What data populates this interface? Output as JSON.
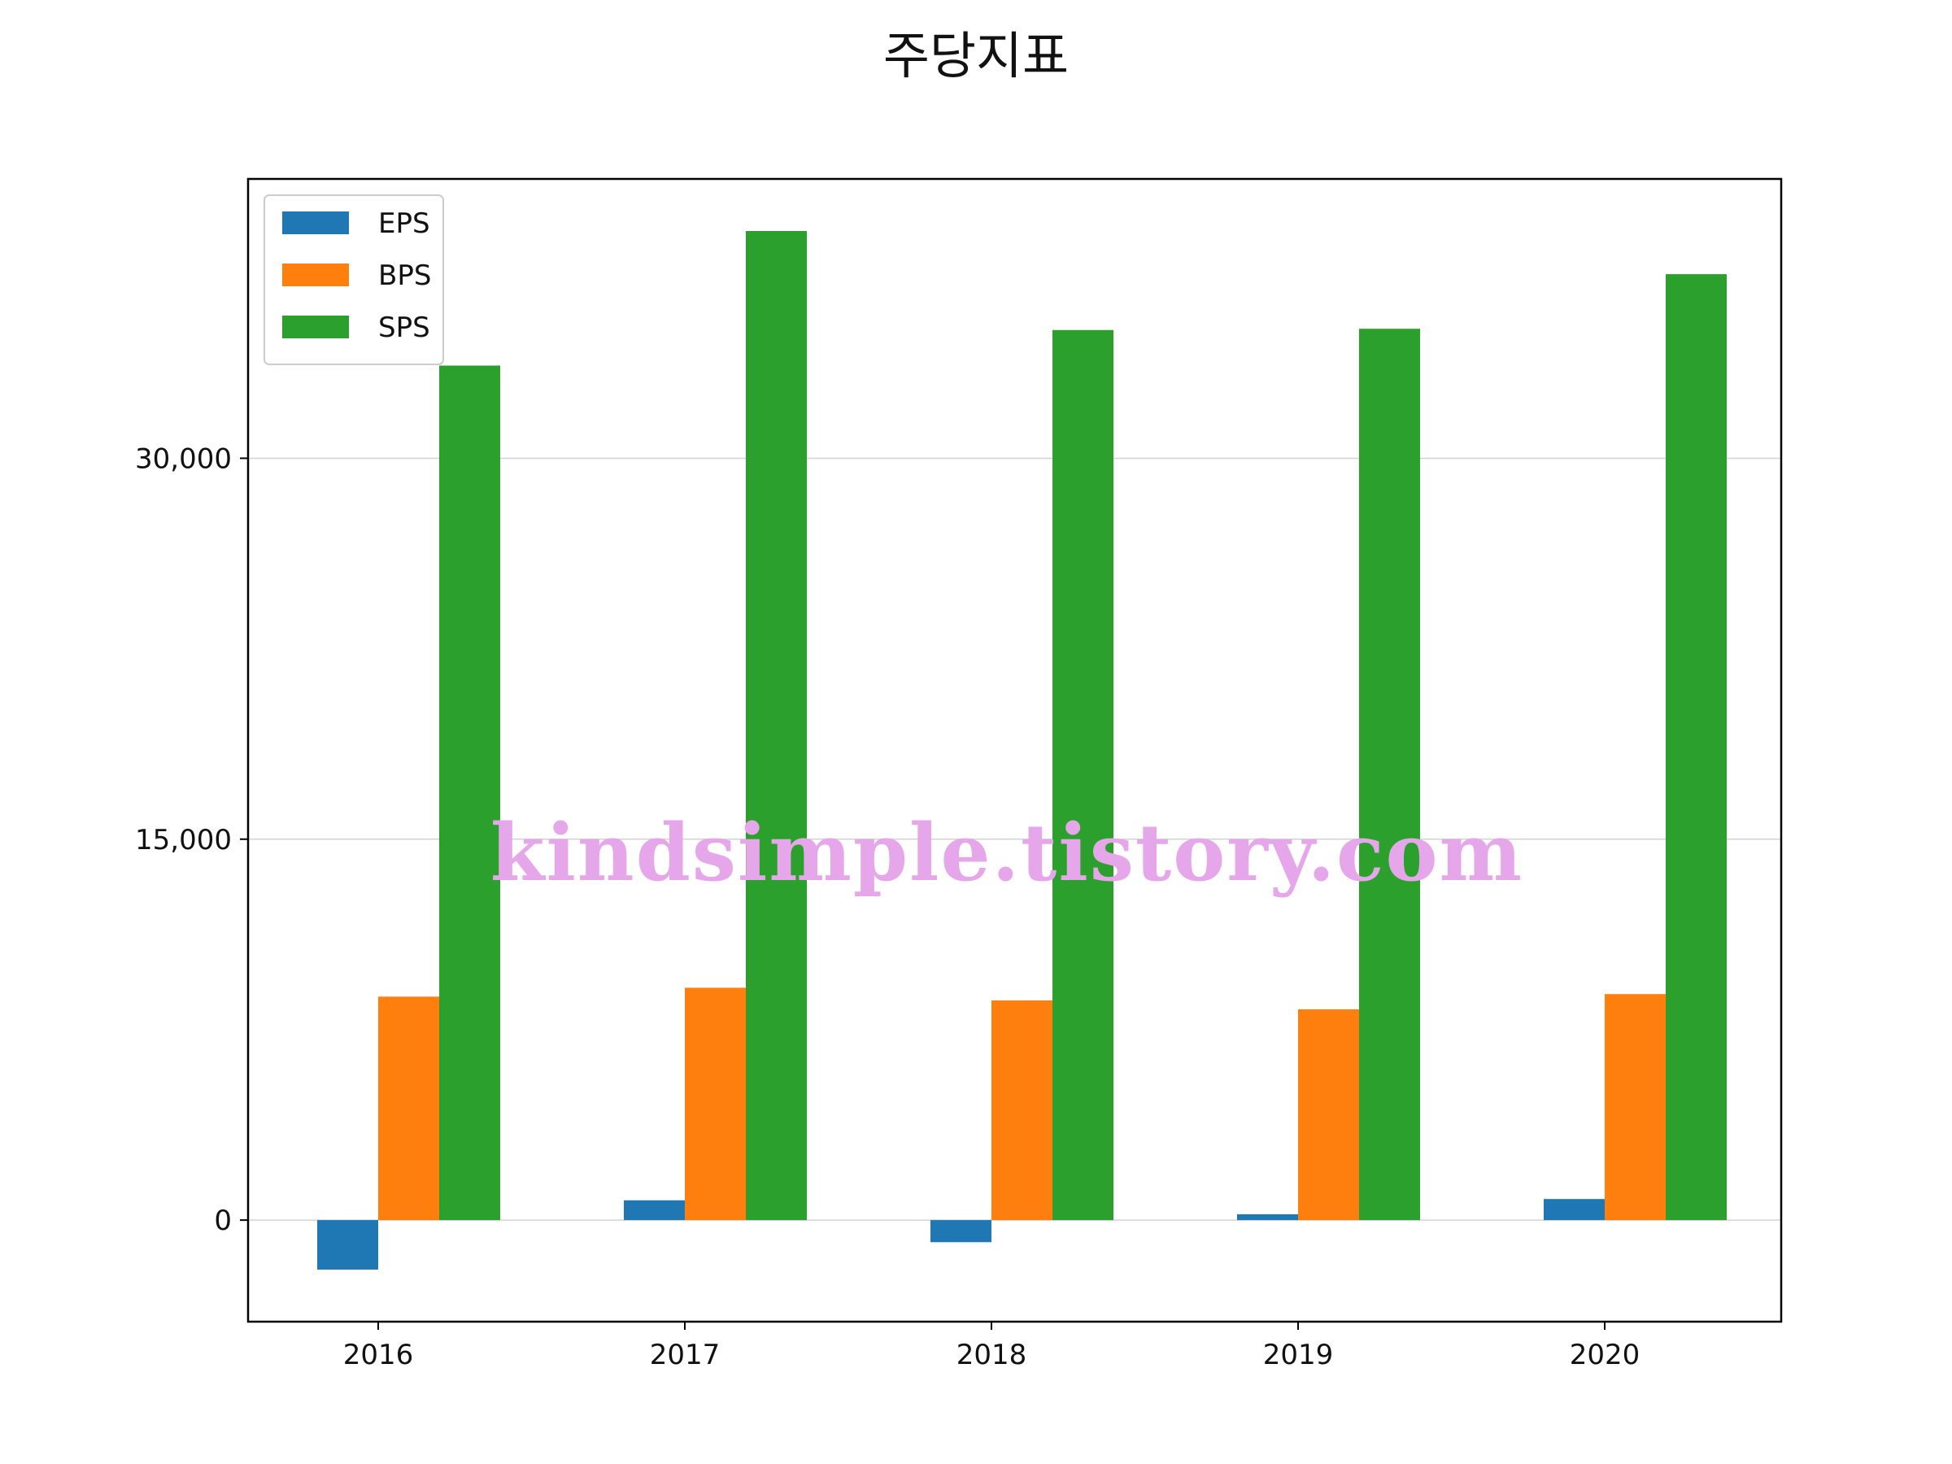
{
  "chart_data": {
    "type": "bar",
    "title": "주당지표",
    "xlabel": "",
    "ylabel": "",
    "categories": [
      "2016",
      "2017",
      "2018",
      "2019",
      "2020"
    ],
    "series": [
      {
        "name": "EPS",
        "color": "#1f77b4",
        "values": [
          -1950,
          780,
          -870,
          230,
          830
        ]
      },
      {
        "name": "BPS",
        "color": "#ff7f0e",
        "values": [
          8800,
          9150,
          8650,
          8300,
          8900
        ]
      },
      {
        "name": "SPS",
        "color": "#2ca02c",
        "values": [
          33650,
          38950,
          35050,
          35100,
          37250
        ]
      }
    ],
    "ylim": [
      -4000,
      41000
    ],
    "yticks": [
      0,
      15000,
      30000
    ],
    "ytick_labels": [
      "0",
      "15,000",
      "30,000"
    ],
    "grid": "horizontal",
    "legend_position": "top-left"
  },
  "watermark": "kindsimple.tistory.com"
}
